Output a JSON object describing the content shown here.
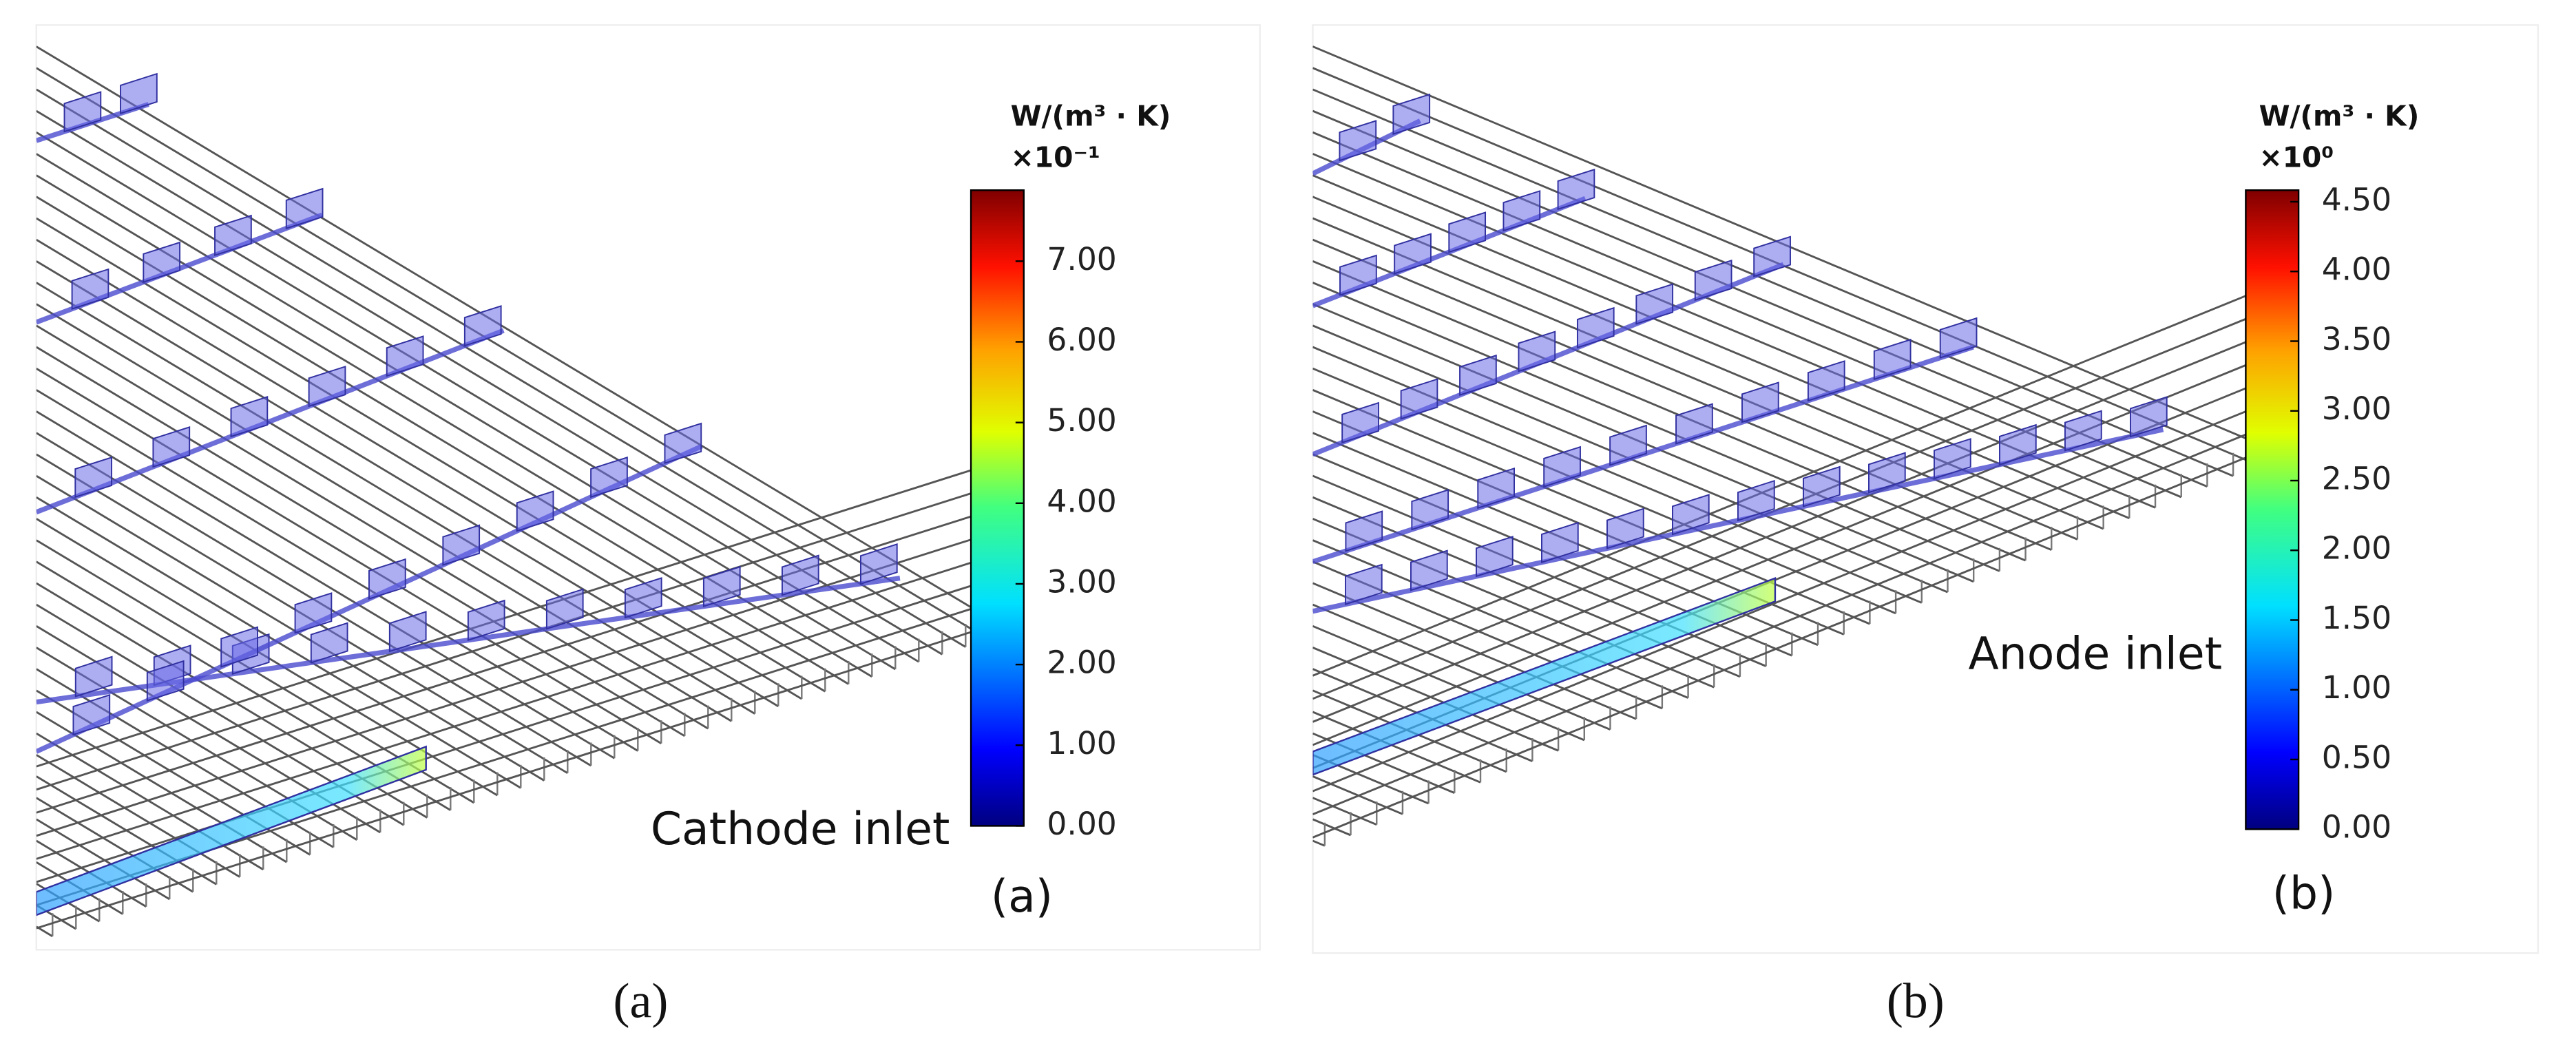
{
  "panels": [
    {
      "unit": "W/(m³ · K)",
      "exponent": "×10⁻¹",
      "ticks": [
        "7.00",
        "6.00",
        "5.00",
        "4.00",
        "3.00",
        "2.00",
        "1.00",
        "0.00"
      ],
      "annotation": "Cathode inlet",
      "label": "(a)",
      "caption": "(a)"
    },
    {
      "unit": "W/(m³ · K)",
      "exponent": "×10⁰",
      "ticks": [
        "4.50",
        "4.00",
        "3.50",
        "3.00",
        "2.50",
        "2.00",
        "1.50",
        "1.00",
        "0.50",
        "0.00"
      ],
      "annotation": "Anode inlet",
      "label": "(b)",
      "caption": "(b)"
    }
  ]
}
